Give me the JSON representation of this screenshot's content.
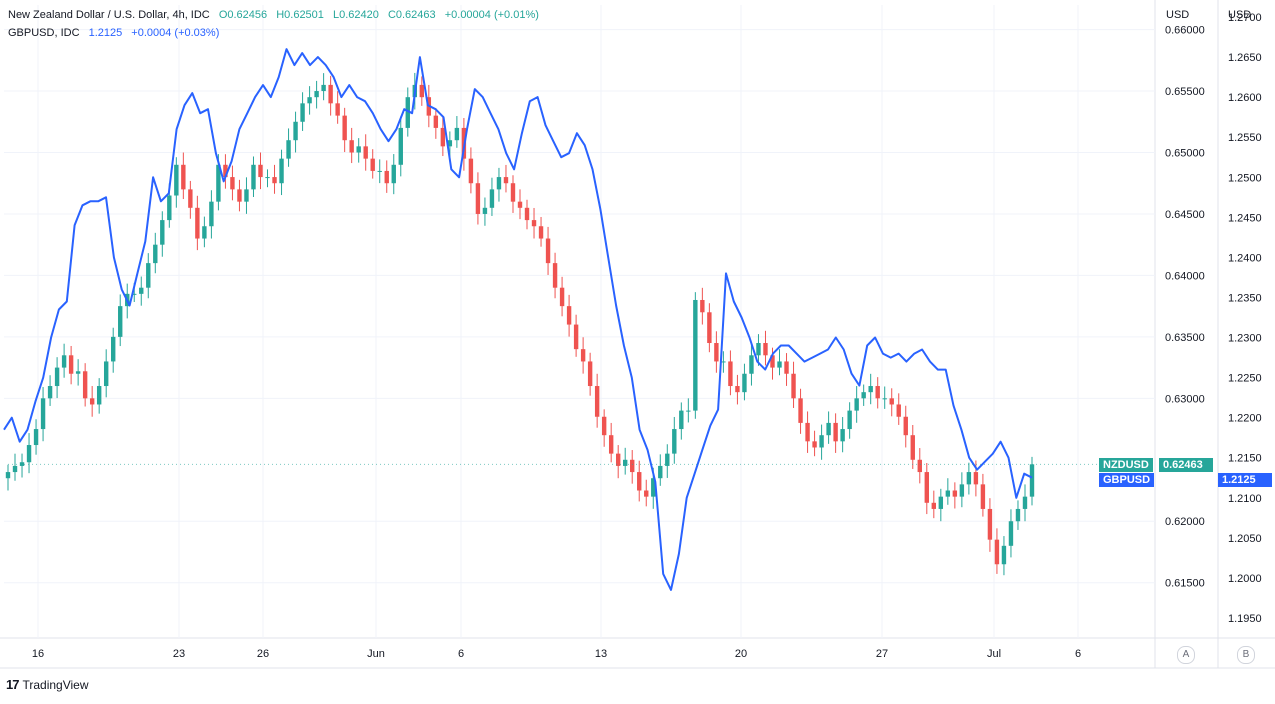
{
  "legend": {
    "main_title": "New Zealand Dollar / U.S. Dollar, 4h, IDC",
    "open": "O0.62456",
    "high": "H0.62501",
    "low": "L0.62420",
    "close": "C0.62463",
    "change": "+0.00004 (+0.01%)",
    "compare_title": "GBPUSD, IDC",
    "compare_value": "1.2125",
    "compare_change": "+0.0004 (+0.03%)"
  },
  "axes": {
    "left_unit": "USD",
    "right_unit": "USD",
    "scale_a": "A",
    "scale_b": "B"
  },
  "tags": {
    "nzd_name": "NZDUSD",
    "nzd_value": "0.62463",
    "gbp_name": "GBPUSD",
    "gbp_value": "1.2125"
  },
  "footer": {
    "brand": "TradingView",
    "logo": "17"
  },
  "colors": {
    "up": "#26a69a",
    "down": "#ef5350",
    "line": "#2962ff",
    "grid": "#f0f3fa"
  },
  "chart_data": {
    "type": "line",
    "x_ticks": [
      "16",
      "23",
      "26",
      "Jun",
      "6",
      "13",
      "20",
      "27",
      "Jul",
      "6"
    ],
    "y_left_ticks": [
      "0.66000",
      "0.65500",
      "0.65000",
      "0.64500",
      "0.64000",
      "0.63500",
      "0.63000",
      "0.62000",
      "0.61500"
    ],
    "y_right_ticks": [
      "1.2700",
      "1.2650",
      "1.2600",
      "1.2550",
      "1.2500",
      "1.2450",
      "1.2400",
      "1.2350",
      "1.2300",
      "1.2250",
      "1.2200",
      "1.2150",
      "1.2100",
      "1.2050",
      "1.2000",
      "1.1950"
    ],
    "y_left_range": [
      0.6105,
      0.662
    ],
    "y_right_range": [
      1.1925,
      1.2715
    ],
    "series": [
      {
        "name": "NZDUSD",
        "axis": "left",
        "style": "candles",
        "values": [
          0.624,
          0.6245,
          0.6248,
          0.6262,
          0.6275,
          0.63,
          0.631,
          0.6325,
          0.6335,
          0.632,
          0.6322,
          0.63,
          0.6295,
          0.631,
          0.633,
          0.635,
          0.6375,
          0.6385,
          0.6385,
          0.639,
          0.641,
          0.6425,
          0.6445,
          0.6465,
          0.649,
          0.647,
          0.6455,
          0.643,
          0.644,
          0.646,
          0.649,
          0.648,
          0.647,
          0.646,
          0.647,
          0.649,
          0.648,
          0.648,
          0.6475,
          0.6495,
          0.651,
          0.6525,
          0.654,
          0.6545,
          0.655,
          0.6555,
          0.654,
          0.653,
          0.651,
          0.65,
          0.6505,
          0.6495,
          0.6485,
          0.6485,
          0.6475,
          0.649,
          0.652,
          0.6545,
          0.6555,
          0.6545,
          0.653,
          0.652,
          0.6505,
          0.651,
          0.652,
          0.6495,
          0.6475,
          0.645,
          0.6455,
          0.647,
          0.648,
          0.6475,
          0.646,
          0.6455,
          0.6445,
          0.644,
          0.643,
          0.641,
          0.639,
          0.6375,
          0.636,
          0.634,
          0.633,
          0.631,
          0.6285,
          0.627,
          0.6255,
          0.6245,
          0.625,
          0.624,
          0.6225,
          0.622,
          0.6235,
          0.6245,
          0.6255,
          0.6275,
          0.629,
          0.629,
          0.638,
          0.637,
          0.6345,
          0.633,
          0.633,
          0.631,
          0.6305,
          0.632,
          0.6335,
          0.6345,
          0.6335,
          0.6325,
          0.633,
          0.632,
          0.63,
          0.628,
          0.6265,
          0.626,
          0.627,
          0.628,
          0.6265,
          0.6275,
          0.629,
          0.63,
          0.6305,
          0.631,
          0.63,
          0.63,
          0.6295,
          0.6285,
          0.627,
          0.625,
          0.624,
          0.6215,
          0.621,
          0.622,
          0.6225,
          0.622,
          0.623,
          0.624,
          0.623,
          0.621,
          0.6185,
          0.6165,
          0.618,
          0.62,
          0.621,
          0.622,
          0.62463
        ]
      },
      {
        "name": "GBPUSD",
        "axis": "right",
        "style": "line",
        "values": [
          1.2185,
          1.22,
          1.217,
          1.2185,
          1.222,
          1.225,
          1.23,
          1.2335,
          1.2345,
          1.244,
          1.2465,
          1.247,
          1.247,
          1.2475,
          1.24,
          1.236,
          1.234,
          1.238,
          1.242,
          1.25,
          1.247,
          1.248,
          1.256,
          1.259,
          1.2605,
          1.258,
          1.2585,
          1.253,
          1.2495,
          1.252,
          1.256,
          1.258,
          1.26,
          1.2615,
          1.26,
          1.2625,
          1.266,
          1.264,
          1.2655,
          1.264,
          1.265,
          1.264,
          1.2625,
          1.26,
          1.2615,
          1.26,
          1.2595,
          1.258,
          1.256,
          1.2545,
          1.256,
          1.2585,
          1.258,
          1.265,
          1.259,
          1.2585,
          1.2575,
          1.251,
          1.25,
          1.256,
          1.261,
          1.26,
          1.258,
          1.256,
          1.253,
          1.251,
          1.2555,
          1.2595,
          1.26,
          1.2565,
          1.2545,
          1.2525,
          1.253,
          1.2555,
          1.254,
          1.251,
          1.246,
          1.24,
          1.234,
          1.229,
          1.225,
          1.2185,
          1.216,
          1.212,
          1.2005,
          1.1985,
          1.203,
          1.21,
          1.213,
          1.216,
          1.219,
          1.221,
          1.238,
          1.2345,
          1.2325,
          1.23,
          1.227,
          1.226,
          1.228,
          1.229,
          1.229,
          1.228,
          1.227,
          1.2275,
          1.228,
          1.2285,
          1.23,
          1.2285,
          1.2255,
          1.224,
          1.229,
          1.23,
          1.228,
          1.2275,
          1.228,
          1.227,
          1.228,
          1.2285,
          1.227,
          1.226,
          1.226,
          1.2215,
          1.2185,
          1.215,
          1.2135,
          1.2145,
          1.2155,
          1.217,
          1.215,
          1.21,
          1.213,
          1.2125
        ]
      }
    ]
  }
}
